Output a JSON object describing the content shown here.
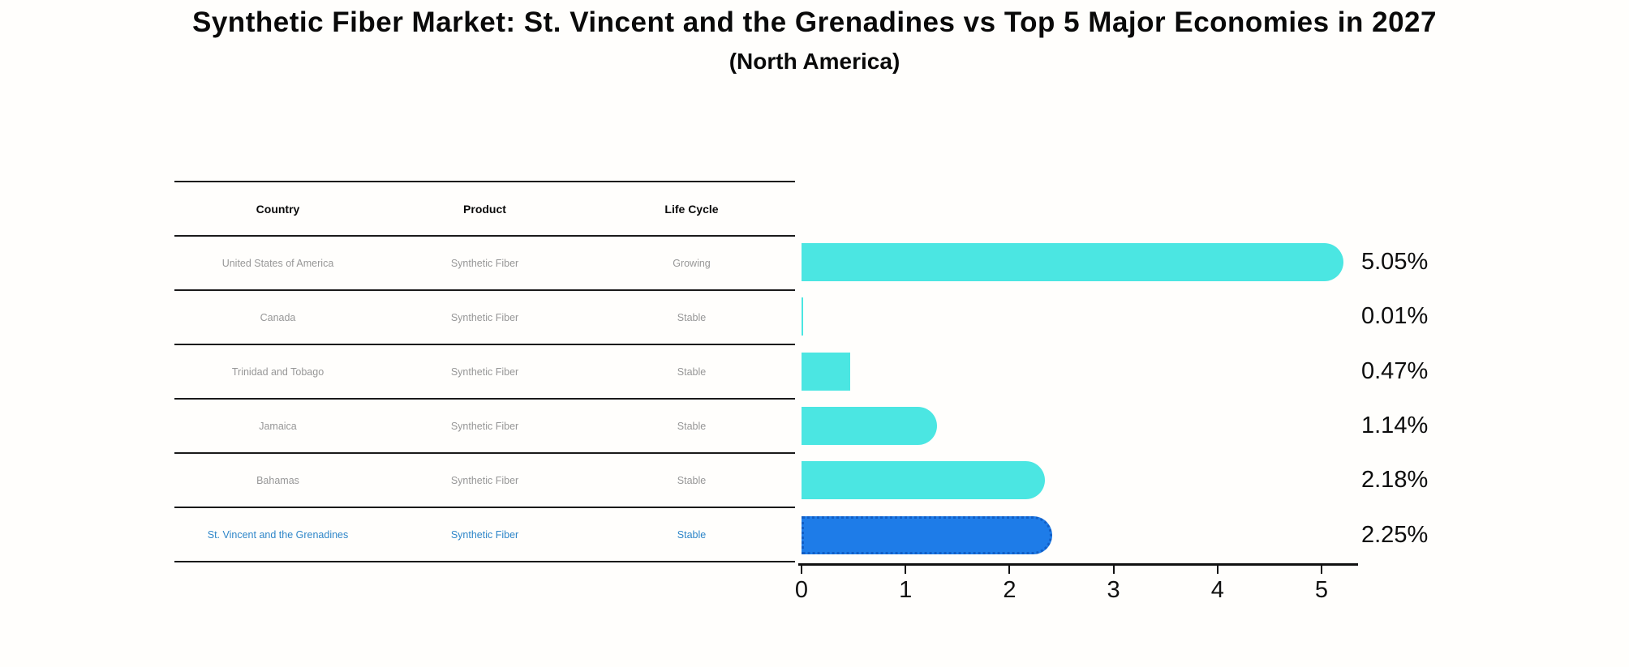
{
  "title": "Synthetic Fiber Market: St. Vincent and the Grenadines vs Top 5 Major Economies in 2027",
  "subtitle": "(North America)",
  "table": {
    "headers": [
      "Country",
      "Product",
      "Life Cycle"
    ],
    "rows": [
      {
        "country": "United States of America",
        "product": "Synthetic Fiber",
        "life_cycle": "Growing"
      },
      {
        "country": "Canada",
        "product": "Synthetic Fiber",
        "life_cycle": "Stable"
      },
      {
        "country": "Trinidad and Tobago",
        "product": "Synthetic Fiber",
        "life_cycle": "Stable"
      },
      {
        "country": "Jamaica",
        "product": "Synthetic Fiber",
        "life_cycle": "Stable"
      },
      {
        "country": "Bahamas",
        "product": "Synthetic Fiber",
        "life_cycle": "Stable"
      },
      {
        "country": "St. Vincent and the Grenadines",
        "product": "Synthetic Fiber",
        "life_cycle": "Stable"
      }
    ],
    "highlight_row_index": 5
  },
  "chart_data": {
    "type": "bar",
    "orientation": "horizontal",
    "categories": [
      "United States of America",
      "Canada",
      "Trinidad and Tobago",
      "Jamaica",
      "Bahamas",
      "St. Vincent and the Grenadines"
    ],
    "values": [
      5.05,
      0.01,
      0.47,
      1.14,
      2.18,
      2.25
    ],
    "value_labels": [
      "5.05%",
      "0.01%",
      "0.47%",
      "1.14%",
      "2.18%",
      "2.25%"
    ],
    "x_ticks": [
      0,
      1,
      2,
      3,
      4,
      5
    ],
    "xlim": [
      0,
      5.35
    ],
    "grid": false,
    "legend": false,
    "highlight_index": 5,
    "bar_color": "#4be6e2",
    "highlight_bar_color": "#1e7ce8",
    "highlight_text_color": "#2e86c9"
  }
}
